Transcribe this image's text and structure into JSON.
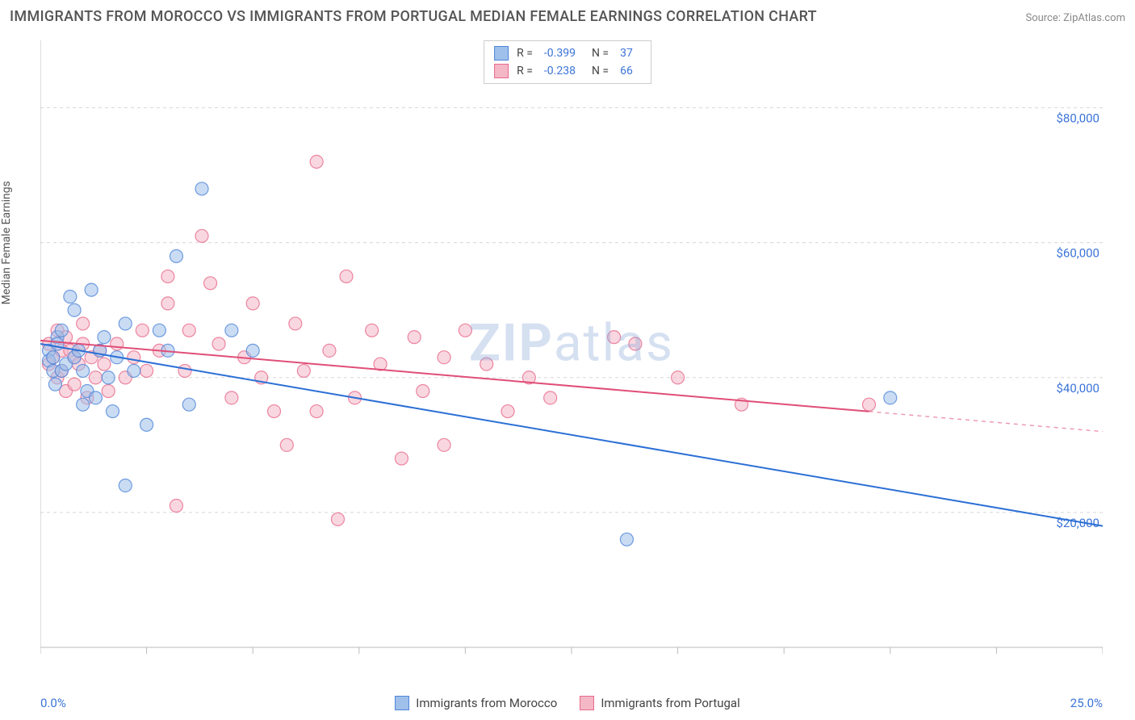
{
  "header": {
    "title": "IMMIGRANTS FROM MOROCCO VS IMMIGRANTS FROM PORTUGAL MEDIAN FEMALE EARNINGS CORRELATION CHART",
    "source": "Source: ZipAtlas.com"
  },
  "watermark": {
    "textBold": "ZIP",
    "textLight": "atlas"
  },
  "chart": {
    "type": "scatter",
    "y_axis_label": "Median Female Earnings",
    "xlim": [
      0,
      25
    ],
    "ylim": [
      0,
      90000
    ],
    "x_origin_label": "0.0%",
    "x_max_label": "25.0%",
    "x_ticks": [
      0,
      2.5,
      5,
      7.5,
      10,
      12.5,
      15,
      17.5,
      20,
      22.5,
      25
    ],
    "y_ticks": [
      {
        "v": 20000,
        "label": "$20,000"
      },
      {
        "v": 40000,
        "label": "$40,000"
      },
      {
        "v": 60000,
        "label": "$60,000"
      },
      {
        "v": 80000,
        "label": "$80,000"
      }
    ],
    "grid_color": "#d8d8d8",
    "grid_dash": "4 4",
    "axis_color": "#bbbbbb",
    "y_tick_label_color": "#3b74d8",
    "background_color": "#ffffff",
    "marker_radius": 8,
    "marker_opacity": 0.55,
    "marker_stroke_width": 1.2,
    "line_width": 2
  },
  "series": [
    {
      "name": "Immigrants from Morocco",
      "fill_color": "#9fc0ea",
      "stroke_color": "#4f86d9",
      "line_color": "#2b6fd6",
      "R": "-0.399",
      "N": "37",
      "trend": {
        "x1": 0,
        "y1": 45000,
        "x2": 25,
        "y2": 18000,
        "solid_to_x": 25
      },
      "points": [
        [
          0.2,
          44000
        ],
        [
          0.2,
          42500
        ],
        [
          0.3,
          41000
        ],
        [
          0.3,
          43000
        ],
        [
          0.35,
          39000
        ],
        [
          0.4,
          46000
        ],
        [
          0.4,
          45000
        ],
        [
          0.5,
          47000
        ],
        [
          0.5,
          41000
        ],
        [
          0.6,
          42000
        ],
        [
          0.7,
          52000
        ],
        [
          0.8,
          43000
        ],
        [
          0.8,
          50000
        ],
        [
          0.9,
          44000
        ],
        [
          1.0,
          36000
        ],
        [
          1.0,
          41000
        ],
        [
          1.1,
          38000
        ],
        [
          1.2,
          53000
        ],
        [
          1.3,
          37000
        ],
        [
          1.4,
          44000
        ],
        [
          1.5,
          46000
        ],
        [
          1.6,
          40000
        ],
        [
          1.7,
          35000
        ],
        [
          1.8,
          43000
        ],
        [
          2.0,
          48000
        ],
        [
          2.0,
          24000
        ],
        [
          2.2,
          41000
        ],
        [
          2.5,
          33000
        ],
        [
          2.8,
          47000
        ],
        [
          3.0,
          44000
        ],
        [
          3.2,
          58000
        ],
        [
          3.5,
          36000
        ],
        [
          3.8,
          68000
        ],
        [
          4.5,
          47000
        ],
        [
          5.0,
          44000
        ],
        [
          13.8,
          16000
        ],
        [
          20.0,
          37000
        ]
      ]
    },
    {
      "name": "Immigrants from Portugal",
      "fill_color": "#f4b7c6",
      "stroke_color": "#e76a8b",
      "line_color": "#e04e78",
      "R": "-0.238",
      "N": "66",
      "trend": {
        "x1": 0,
        "y1": 45500,
        "x2": 25,
        "y2": 32000,
        "solid_to_x": 19.5
      },
      "points": [
        [
          0.2,
          45000
        ],
        [
          0.2,
          42000
        ],
        [
          0.3,
          43000
        ],
        [
          0.4,
          40000
        ],
        [
          0.4,
          47000
        ],
        [
          0.5,
          41000
        ],
        [
          0.5,
          44000
        ],
        [
          0.6,
          38000
        ],
        [
          0.6,
          46000
        ],
        [
          0.7,
          44000
        ],
        [
          0.8,
          39000
        ],
        [
          0.8,
          43000
        ],
        [
          0.9,
          42000
        ],
        [
          1.0,
          45000
        ],
        [
          1.0,
          48000
        ],
        [
          1.1,
          37000
        ],
        [
          1.2,
          43000
        ],
        [
          1.3,
          40000
        ],
        [
          1.4,
          44000
        ],
        [
          1.5,
          42000
        ],
        [
          1.6,
          38000
        ],
        [
          1.8,
          45000
        ],
        [
          2.0,
          40000
        ],
        [
          2.2,
          43000
        ],
        [
          2.4,
          47000
        ],
        [
          2.5,
          41000
        ],
        [
          2.8,
          44000
        ],
        [
          3.0,
          55000
        ],
        [
          3.0,
          51000
        ],
        [
          3.2,
          21000
        ],
        [
          3.4,
          41000
        ],
        [
          3.5,
          47000
        ],
        [
          3.8,
          61000
        ],
        [
          4.0,
          54000
        ],
        [
          4.2,
          45000
        ],
        [
          4.5,
          37000
        ],
        [
          4.8,
          43000
        ],
        [
          5.0,
          51000
        ],
        [
          5.2,
          40000
        ],
        [
          5.5,
          35000
        ],
        [
          5.8,
          30000
        ],
        [
          6.0,
          48000
        ],
        [
          6.2,
          41000
        ],
        [
          6.5,
          72000
        ],
        [
          6.5,
          35000
        ],
        [
          6.8,
          44000
        ],
        [
          7.0,
          19000
        ],
        [
          7.2,
          55000
        ],
        [
          7.4,
          37000
        ],
        [
          7.8,
          47000
        ],
        [
          8.0,
          42000
        ],
        [
          8.5,
          28000
        ],
        [
          8.8,
          46000
        ],
        [
          9.0,
          38000
        ],
        [
          9.5,
          43000
        ],
        [
          9.5,
          30000
        ],
        [
          10.0,
          47000
        ],
        [
          10.5,
          42000
        ],
        [
          11.0,
          35000
        ],
        [
          11.5,
          40000
        ],
        [
          12.0,
          37000
        ],
        [
          13.5,
          46000
        ],
        [
          14.0,
          45000
        ],
        [
          15.0,
          40000
        ],
        [
          16.5,
          36000
        ],
        [
          19.5,
          36000
        ]
      ]
    }
  ],
  "stats_box": {
    "R_label": "R =",
    "N_label": "N ="
  },
  "legend": {
    "items": [
      {
        "label": "Immigrants from Morocco",
        "fill": "#9fc0ea",
        "stroke": "#4f86d9"
      },
      {
        "label": "Immigrants from Portugal",
        "fill": "#f4b7c6",
        "stroke": "#e76a8b"
      }
    ]
  }
}
